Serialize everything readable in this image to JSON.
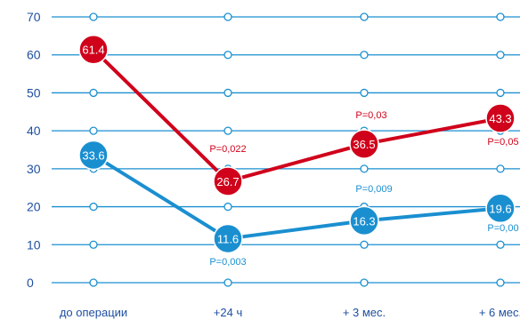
{
  "chart_data": {
    "type": "line",
    "title": "",
    "xlabel": "",
    "ylabel": "",
    "categories": [
      "до операции",
      "+24 ч",
      "+ 3 мес.",
      "+ 6 мес."
    ],
    "ylim": [
      0,
      70
    ],
    "yticks": [
      "0",
      "10",
      "20",
      "30",
      "40",
      "50",
      "60",
      "70"
    ],
    "grid": true,
    "series": [
      {
        "color": "#d0021b",
        "values": [
          61.4,
          26.7,
          36.5,
          43.3
        ],
        "labels": [
          "61.4",
          "26.7",
          "36.5",
          "43.3"
        ],
        "pvalues": [
          "",
          "P=0,022",
          "P=0,03",
          "P=0,05"
        ]
      },
      {
        "color": "#1a8fd0",
        "values": [
          33.6,
          11.6,
          16.3,
          19.6
        ],
        "labels": [
          "33.6",
          "11.6",
          "16.3",
          "19.6"
        ],
        "pvalues": [
          "",
          "P=0,003",
          "P=0,009",
          "P=0,00"
        ]
      }
    ],
    "grid_color": "#1a8fd0",
    "axis_text_color": "#1f4fa0"
  }
}
